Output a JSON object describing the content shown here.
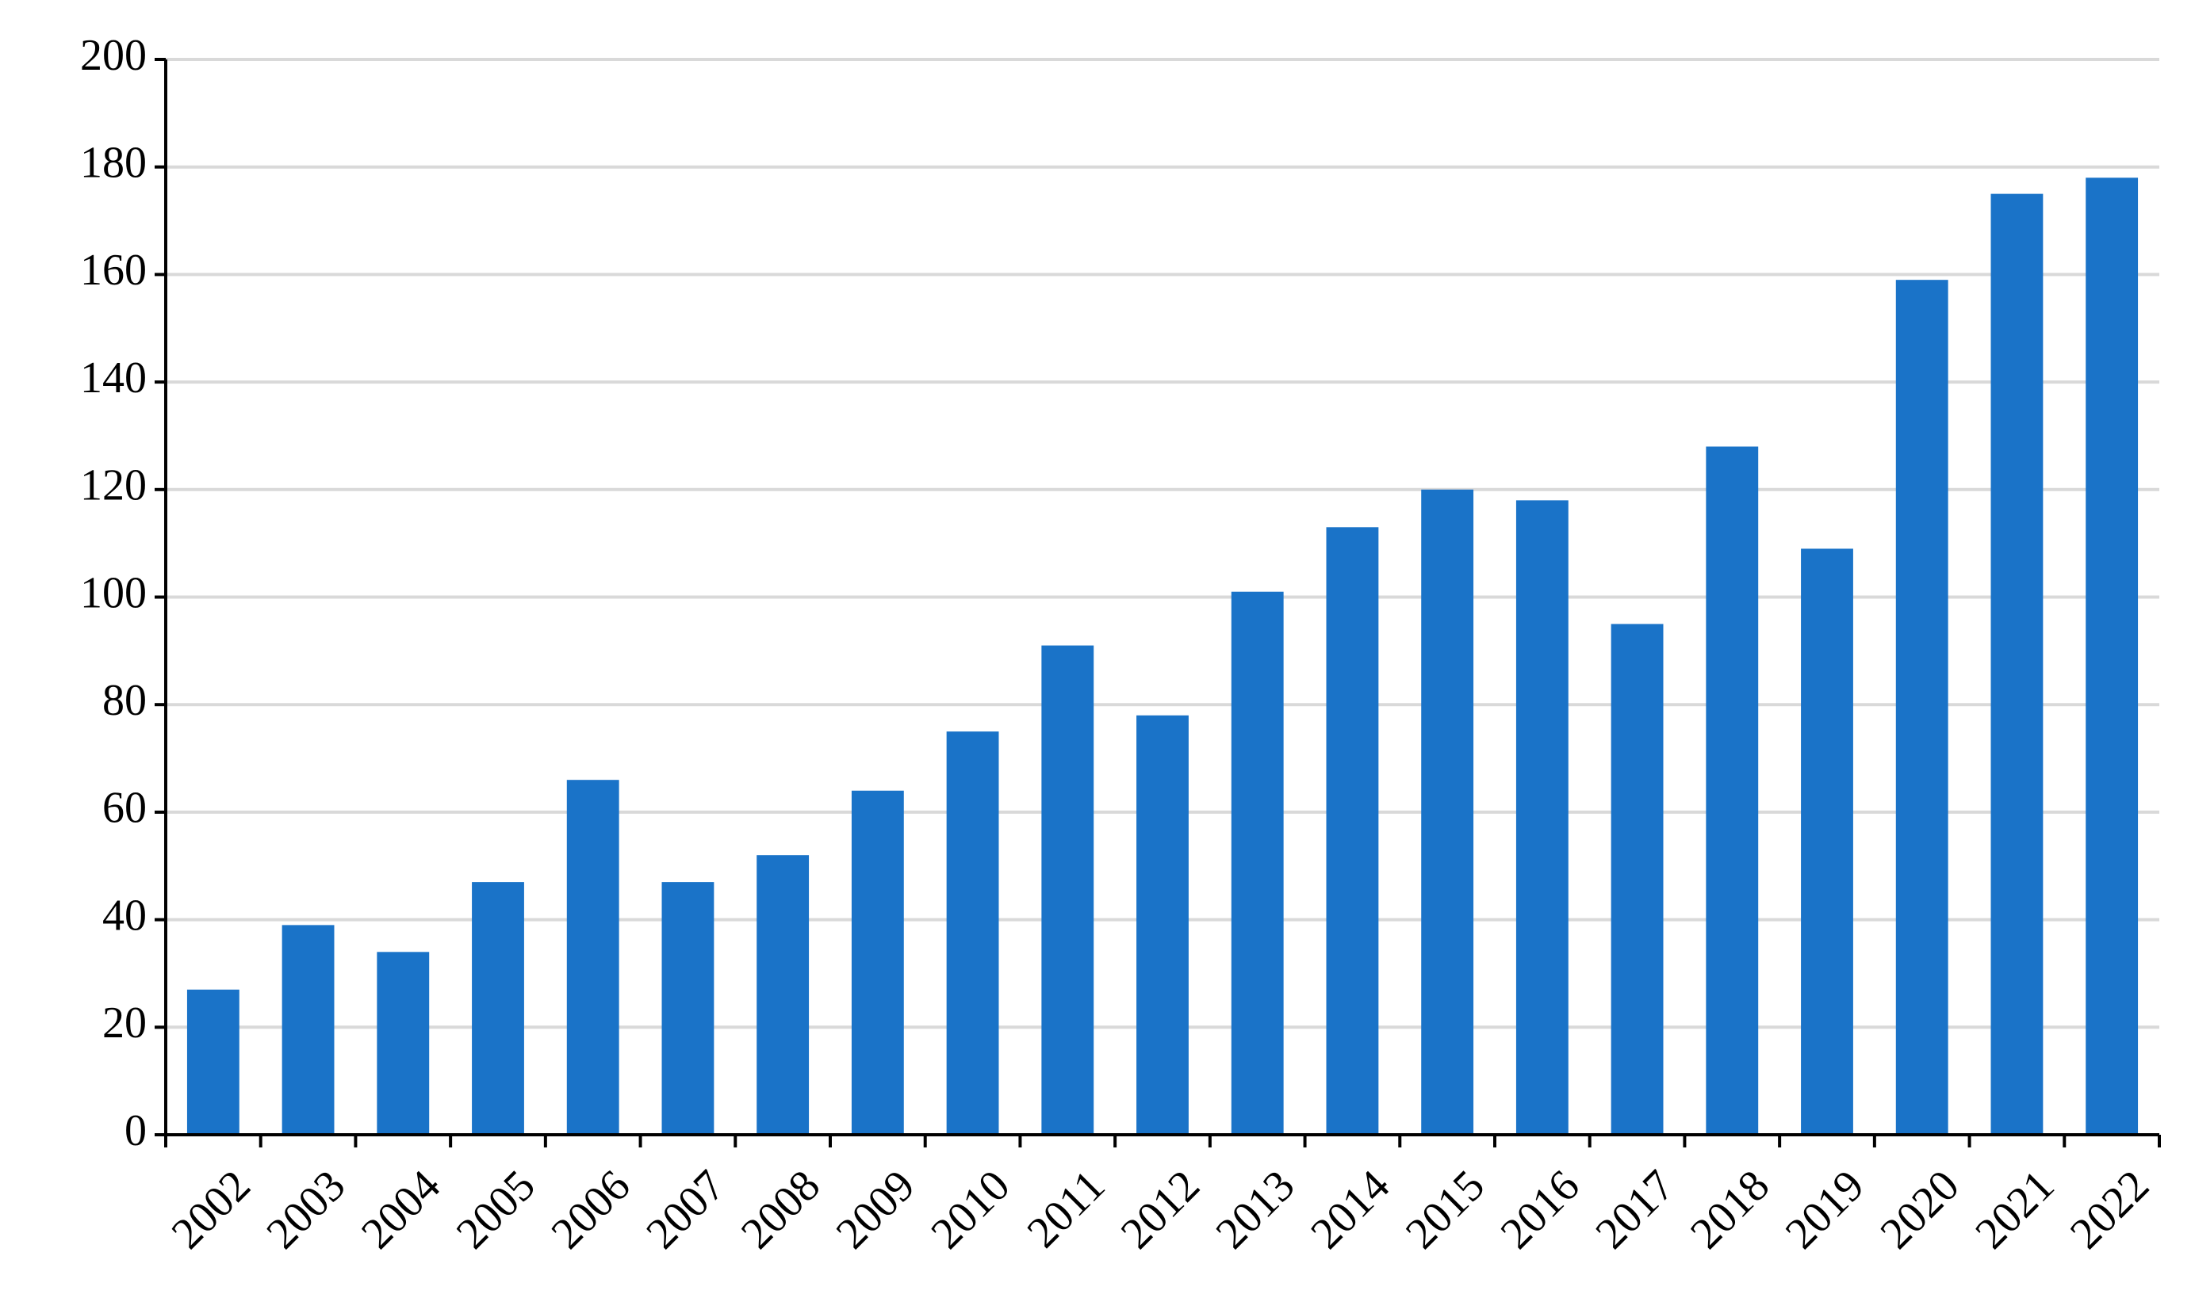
{
  "chart_data": {
    "type": "bar",
    "categories": [
      "2002",
      "2003",
      "2004",
      "2005",
      "2006",
      "2007",
      "2008",
      "2009",
      "2010",
      "2011",
      "2012",
      "2013",
      "2014",
      "2015",
      "2016",
      "2017",
      "2018",
      "2019",
      "2020",
      "2021",
      "2022"
    ],
    "values": [
      27,
      39,
      34,
      47,
      66,
      47,
      52,
      64,
      75,
      91,
      78,
      101,
      113,
      120,
      118,
      95,
      128,
      109,
      159,
      175,
      178
    ],
    "color": "#1a73c8",
    "ylim": [
      0,
      200
    ],
    "yticks": [
      0,
      20,
      40,
      60,
      80,
      100,
      120,
      140,
      160,
      180,
      200
    ],
    "grid": true
  }
}
